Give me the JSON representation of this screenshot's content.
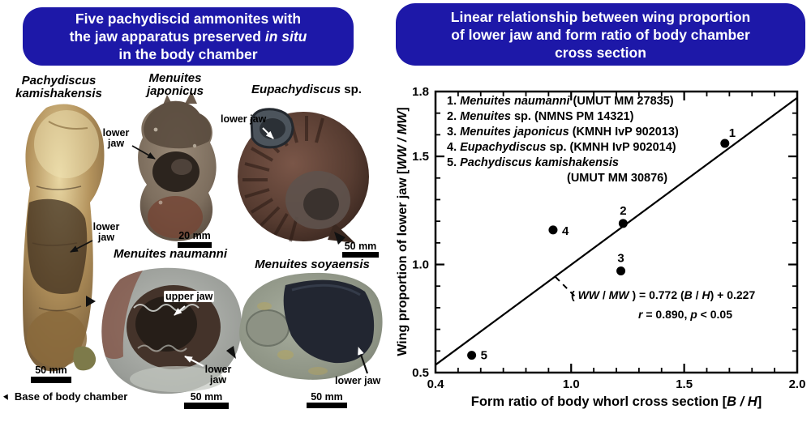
{
  "colors": {
    "header_bg": "#1d18a8",
    "header_text": "#ffffff",
    "ink": "#000000",
    "page_bg": "#ffffff"
  },
  "left_panel": {
    "title": {
      "line1": "Five pachydiscid ammonites with",
      "line2_normal": "the jaw apparatus preserved ",
      "line2_italic": "in situ",
      "line3": "in the body chamber"
    },
    "specimens": {
      "pachydiscus": {
        "name1": "Pachydiscus",
        "name2": "kamishakensis",
        "jaw1": "lower",
        "jaw2": "jaw",
        "scale": "50 mm"
      },
      "japonicus": {
        "name1": "Menuites",
        "name2": "japonicus",
        "jaw1": "lower",
        "jaw2": "jaw",
        "scale": "20 mm"
      },
      "eupachydiscus": {
        "name_italic": "Eupachydiscus",
        "name_normal": " sp.",
        "jaw": "lower jaw",
        "scale": "50 mm"
      },
      "naumanni": {
        "name": "Menuites naumanni",
        "upper_jaw": "upper jaw",
        "jaw1": "lower",
        "jaw2": "jaw",
        "scale": "50 mm"
      },
      "soyaensis": {
        "name": "Menuites soyaensis",
        "jaw": "lower jaw",
        "scale": "50 mm"
      }
    },
    "base_legend": {
      "marker": "▼",
      "text": "Base of body chamber"
    }
  },
  "right_panel": {
    "title": {
      "line1": "Linear relationship between wing proportion",
      "line2": "of lower jaw and form ratio of body chamber",
      "line3": "cross section"
    },
    "y_axis": {
      "label_normal": "Wing proportion of lower jaw [",
      "label_italic": "WW / MW",
      "label_close": "]"
    },
    "x_axis": {
      "label_normal": "Form ratio of body whorl cross section [",
      "label_italic": "B / H",
      "label_close": "]"
    },
    "legend": [
      {
        "num": "1. ",
        "italic": "Menuites naumanni",
        "rest": " (UMUT MM 27835)"
      },
      {
        "num": "2. ",
        "italic": "Menuites",
        "rest": " sp. (NMNS PM 14321)"
      },
      {
        "num": "3. ",
        "italic": "Menuites japonicus",
        "rest": " (KMNH IvP 902013)"
      },
      {
        "num": "4. ",
        "italic": "Eupachydiscus",
        "rest": " sp. (KMNH IvP 902014)"
      },
      {
        "num": "5. ",
        "italic": "Pachydiscus kamishakensis",
        "rest": "",
        "line2": "(UMUT MM 30876)"
      }
    ],
    "equation": {
      "open": "( ",
      "i1": "WW",
      "s1": " / ",
      "i2": "MW",
      "mid": " ) = 0.772 (",
      "i3": "B",
      "s2": " / ",
      "i4": "H",
      "close": ") + 0.227"
    },
    "stats": {
      "rsym": "r",
      "rmid": " = 0.890, ",
      "psym": "p",
      "pend": " < 0.05"
    }
  },
  "chart_data": {
    "type": "scatter",
    "title": "Linear relationship between wing proportion of lower jaw and form ratio of body chamber cross section",
    "xlabel": "Form ratio of body whorl cross section [B/H]",
    "ylabel": "Wing proportion of lower jaw [WW/MW]",
    "xlim": [
      0.4,
      2.0
    ],
    "ylim": [
      0.5,
      1.8
    ],
    "x_major_ticks": [
      0.4,
      1.0,
      1.5,
      2.0
    ],
    "y_major_ticks": [
      0.5,
      1.0,
      1.5,
      1.8
    ],
    "minor_tick_step": 0.1,
    "grid": false,
    "legend_position": "upper-left-inside",
    "points": [
      {
        "label": "1",
        "x": 1.68,
        "y": 1.56,
        "species": "Menuites naumanni (UMUT MM 27835)"
      },
      {
        "label": "2",
        "x": 1.23,
        "y": 1.19,
        "species": "Menuites sp. (NMNS PM 14321)"
      },
      {
        "label": "3",
        "x": 1.22,
        "y": 0.97,
        "species": "Menuites japonicus (KMNH IvP 902013)"
      },
      {
        "label": "4",
        "x": 0.92,
        "y": 1.16,
        "species": "Eupachydiscus sp. (KMNH IvP 902014)"
      },
      {
        "label": "5",
        "x": 0.56,
        "y": 0.58,
        "species": "Pachydiscus kamishakensis (UMUT MM 30876)"
      }
    ],
    "regression_line": {
      "slope": 0.772,
      "intercept": 0.227,
      "equation_text": "(WW/MW) = 0.772 (B/H) + 0.227",
      "r": 0.89,
      "p": "< 0.05"
    }
  }
}
